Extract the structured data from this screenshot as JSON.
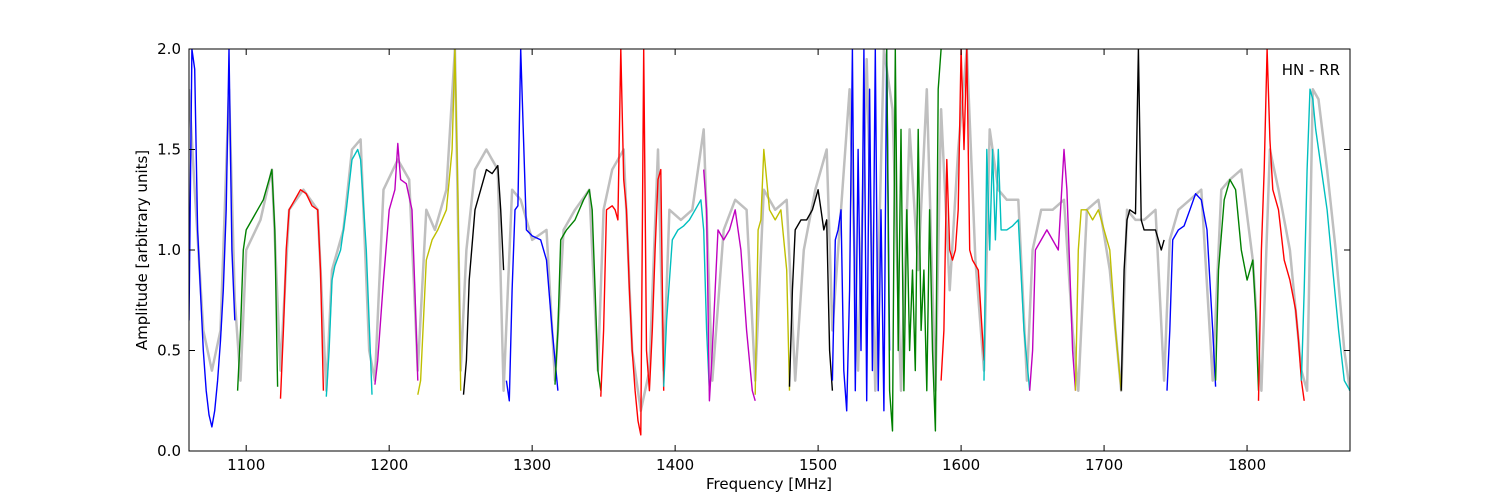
{
  "chart_data": {
    "type": "line",
    "title": "",
    "annotation": "HN - RR",
    "xlabel": "Frequency [MHz]",
    "ylabel": "Amplitude [arbitrary units]",
    "xlim": [
      1060,
      1872
    ],
    "ylim": [
      0,
      2.0
    ],
    "x_ticks": [
      1100,
      1200,
      1300,
      1400,
      1500,
      1600,
      1700,
      1800
    ],
    "y_ticks": [
      0.0,
      0.5,
      1.0,
      1.5,
      2.0
    ],
    "y_tick_labels": [
      "0.0",
      "0.5",
      "1.0",
      "1.5",
      "2.0"
    ],
    "grid": false,
    "colors": {
      "background_envelope": "#bfbfbf",
      "cycle": [
        "#0000ff",
        "#008000",
        "#ff0000",
        "#00bfbf",
        "#bf00bf",
        "#bfbf00",
        "#000000"
      ]
    },
    "background": {
      "name": "envelope",
      "x": [
        1060,
        1064,
        1070,
        1076,
        1082,
        1088,
        1092,
        1096,
        1100,
        1110,
        1118,
        1124,
        1130,
        1140,
        1150,
        1156,
        1160,
        1168,
        1174,
        1180,
        1186,
        1190,
        1196,
        1206,
        1214,
        1220,
        1226,
        1232,
        1240,
        1246,
        1250,
        1254,
        1260,
        1268,
        1276,
        1280,
        1286,
        1292,
        1300,
        1310,
        1316,
        1322,
        1330,
        1340,
        1346,
        1350,
        1356,
        1364,
        1370,
        1376,
        1382,
        1388,
        1392,
        1396,
        1404,
        1412,
        1420,
        1426,
        1434,
        1442,
        1450,
        1456,
        1462,
        1470,
        1478,
        1484,
        1490,
        1498,
        1506,
        1510,
        1516,
        1522,
        1528,
        1534,
        1540,
        1546,
        1552,
        1558,
        1564,
        1570,
        1576,
        1582,
        1586,
        1592,
        1598,
        1604,
        1610,
        1616,
        1620,
        1626,
        1632,
        1640,
        1646,
        1650,
        1656,
        1664,
        1672,
        1678,
        1682,
        1688,
        1696,
        1704,
        1712,
        1716,
        1722,
        1728,
        1736,
        1742,
        1746,
        1752,
        1760,
        1768,
        1776,
        1782,
        1788,
        1796,
        1804,
        1810,
        1816,
        1822,
        1830,
        1838,
        1842,
        1846,
        1850,
        1856,
        1862,
        1868,
        1872
      ],
      "y": [
        1.8,
        1.3,
        0.6,
        0.4,
        0.6,
        1.8,
        0.75,
        0.35,
        1.0,
        1.15,
        1.4,
        0.4,
        1.2,
        1.3,
        1.2,
        0.3,
        0.9,
        1.1,
        1.5,
        1.55,
        0.5,
        0.35,
        1.3,
        1.45,
        1.35,
        0.4,
        1.2,
        1.1,
        1.3,
        2.0,
        0.4,
        1.0,
        1.4,
        1.5,
        1.4,
        0.3,
        1.3,
        1.25,
        1.05,
        1.1,
        0.35,
        1.1,
        1.2,
        1.3,
        0.4,
        1.2,
        1.4,
        1.5,
        0.5,
        0.2,
        0.4,
        1.5,
        0.4,
        1.2,
        1.15,
        1.2,
        1.6,
        0.35,
        1.1,
        1.25,
        1.2,
        0.35,
        1.3,
        1.2,
        1.25,
        0.35,
        1.0,
        1.3,
        1.5,
        0.6,
        1.2,
        1.8,
        0.4,
        1.95,
        0.3,
        2.0,
        1.7,
        0.3,
        1.6,
        0.9,
        1.8,
        0.3,
        1.7,
        0.8,
        1.5,
        2.0,
        0.95,
        0.4,
        1.6,
        1.3,
        1.25,
        1.25,
        0.35,
        1.0,
        1.2,
        1.2,
        1.25,
        0.6,
        0.3,
        1.2,
        1.25,
        0.9,
        0.3,
        1.2,
        1.15,
        1.15,
        1.2,
        0.35,
        1.05,
        1.2,
        1.25,
        1.3,
        0.35,
        1.3,
        1.35,
        1.4,
        0.95,
        0.3,
        1.5,
        1.3,
        1.0,
        0.4,
        0.3,
        1.8,
        1.75,
        1.4,
        1.0,
        0.5,
        0.3
      ]
    },
    "series": [
      {
        "color": "#0000ff",
        "x": [
          1060,
          1062,
          1064,
          1066,
          1068,
          1070,
          1072,
          1074,
          1076,
          1078,
          1080,
          1082,
          1084,
          1086,
          1088,
          1090,
          1092
        ],
        "y": [
          0.65,
          2.0,
          1.9,
          1.1,
          0.8,
          0.5,
          0.3,
          0.18,
          0.12,
          0.2,
          0.35,
          0.55,
          0.8,
          1.2,
          2.0,
          1.0,
          0.65
        ]
      },
      {
        "color": "#008000",
        "x": [
          1094,
          1096,
          1098,
          1100,
          1104,
          1108,
          1112,
          1116,
          1118,
          1120,
          1122
        ],
        "y": [
          0.3,
          0.6,
          1.0,
          1.1,
          1.15,
          1.2,
          1.25,
          1.35,
          1.4,
          1.1,
          0.32
        ]
      },
      {
        "color": "#ff0000",
        "x": [
          1124,
          1126,
          1128,
          1130,
          1134,
          1138,
          1142,
          1146,
          1150,
          1152,
          1154
        ],
        "y": [
          0.26,
          0.6,
          1.0,
          1.2,
          1.25,
          1.3,
          1.28,
          1.22,
          1.2,
          0.9,
          0.3
        ]
      },
      {
        "color": "#00bfbf",
        "x": [
          1156,
          1158,
          1160,
          1162,
          1166,
          1170,
          1174,
          1178,
          1180,
          1184,
          1188
        ],
        "y": [
          0.27,
          0.5,
          0.85,
          0.92,
          1.0,
          1.2,
          1.45,
          1.5,
          1.45,
          1.0,
          0.28
        ]
      },
      {
        "color": "#bf00bf",
        "x": [
          1190,
          1192,
          1196,
          1200,
          1204,
          1206,
          1208,
          1212,
          1216,
          1218,
          1220
        ],
        "y": [
          0.33,
          0.45,
          0.85,
          1.2,
          1.3,
          1.53,
          1.35,
          1.33,
          1.2,
          0.8,
          0.35
        ]
      },
      {
        "color": "#bfbf00",
        "x": [
          1220,
          1222,
          1226,
          1230,
          1234,
          1240,
          1244,
          1246,
          1248,
          1250
        ],
        "y": [
          0.28,
          0.35,
          0.95,
          1.05,
          1.1,
          1.2,
          1.5,
          2.0,
          1.3,
          0.3
        ]
      },
      {
        "color": "#000000",
        "x": [
          1252,
          1254,
          1256,
          1260,
          1264,
          1268,
          1272,
          1276,
          1278,
          1280
        ],
        "y": [
          0.28,
          0.45,
          0.85,
          1.2,
          1.3,
          1.4,
          1.38,
          1.42,
          1.2,
          0.9
        ]
      },
      {
        "color": "#0000ff",
        "x": [
          1282,
          1284,
          1286,
          1288,
          1290,
          1292,
          1296,
          1300,
          1306,
          1310,
          1314,
          1318
        ],
        "y": [
          0.35,
          0.25,
          0.8,
          1.2,
          1.22,
          2.0,
          1.1,
          1.07,
          1.05,
          0.95,
          0.6,
          0.3
        ]
      },
      {
        "color": "#008000",
        "x": [
          1316,
          1318,
          1320,
          1324,
          1330,
          1336,
          1340,
          1342,
          1344,
          1346,
          1348
        ],
        "y": [
          0.33,
          0.6,
          1.05,
          1.1,
          1.15,
          1.25,
          1.3,
          1.2,
          0.8,
          0.4,
          0.3
        ]
      },
      {
        "color": "#ff0000",
        "x": [
          1348,
          1350,
          1352,
          1356,
          1358,
          1360,
          1362,
          1364,
          1366,
          1368,
          1370,
          1372,
          1374,
          1376,
          1378,
          1380,
          1382,
          1384,
          1386,
          1388,
          1390,
          1392
        ],
        "y": [
          0.27,
          0.6,
          1.2,
          1.22,
          1.2,
          1.15,
          2.0,
          1.35,
          1.2,
          0.8,
          0.5,
          0.3,
          0.15,
          0.08,
          2.0,
          0.5,
          0.3,
          0.6,
          1.0,
          1.35,
          1.4,
          0.3
        ]
      },
      {
        "color": "#00bfbf",
        "x": [
          1392,
          1394,
          1398,
          1402,
          1406,
          1410,
          1414,
          1418,
          1420,
          1422,
          1424
        ],
        "y": [
          0.32,
          0.65,
          1.05,
          1.1,
          1.12,
          1.15,
          1.2,
          1.25,
          1.1,
          0.6,
          0.3
        ]
      },
      {
        "color": "#bf00bf",
        "x": [
          1420,
          1422,
          1424,
          1426,
          1430,
          1434,
          1438,
          1442,
          1446,
          1450,
          1454,
          1456
        ],
        "y": [
          1.4,
          1.2,
          0.25,
          0.5,
          1.1,
          1.05,
          1.1,
          1.2,
          1.0,
          0.6,
          0.3,
          0.25
        ]
      },
      {
        "color": "#bfbf00",
        "x": [
          1456,
          1458,
          1460,
          1462,
          1466,
          1470,
          1474,
          1478,
          1480
        ],
        "y": [
          0.28,
          1.1,
          1.15,
          1.5,
          1.2,
          1.15,
          1.2,
          0.9,
          0.3
        ]
      },
      {
        "color": "#000000",
        "x": [
          1480,
          1482,
          1484,
          1488,
          1492,
          1496,
          1500,
          1502,
          1504,
          1506,
          1508,
          1510
        ],
        "y": [
          0.32,
          0.8,
          1.1,
          1.15,
          1.15,
          1.2,
          1.3,
          1.2,
          1.1,
          1.15,
          0.5,
          0.3
        ]
      },
      {
        "color": "#0000ff",
        "x": [
          1510,
          1512,
          1514,
          1516,
          1518,
          1520,
          1522,
          1524,
          1526,
          1528,
          1530,
          1532,
          1534,
          1536,
          1538,
          1540,
          1542,
          1544,
          1546,
          1548,
          1550
        ],
        "y": [
          0.35,
          1.05,
          1.1,
          1.2,
          0.4,
          0.2,
          0.8,
          2.0,
          0.3,
          1.5,
          0.5,
          2.0,
          0.25,
          1.8,
          0.4,
          2.0,
          0.3,
          1.2,
          0.2,
          2.0,
          0.5
        ]
      },
      {
        "color": "#008000",
        "x": [
          1548,
          1550,
          1552,
          1554,
          1556,
          1558,
          1560,
          1562,
          1564,
          1566,
          1568,
          1570,
          1572,
          1574,
          1576,
          1578,
          1580,
          1582,
          1584,
          1586
        ],
        "y": [
          2.0,
          0.3,
          0.1,
          2.0,
          0.5,
          1.6,
          0.3,
          1.2,
          0.5,
          0.9,
          0.4,
          1.6,
          0.6,
          0.9,
          0.3,
          1.2,
          0.5,
          0.1,
          1.8,
          2.0
        ]
      },
      {
        "color": "#ff0000",
        "x": [
          1586,
          1588,
          1590,
          1592,
          1594,
          1596,
          1598,
          1600,
          1602,
          1604,
          1606,
          1608,
          1612,
          1616
        ],
        "y": [
          0.35,
          0.6,
          1.45,
          1.0,
          0.95,
          1.0,
          1.2,
          2.0,
          1.5,
          2.0,
          1.0,
          0.95,
          0.9,
          0.45
        ]
      },
      {
        "color": "#00bfbf",
        "x": [
          1616,
          1618,
          1620,
          1622,
          1624,
          1626,
          1628,
          1632,
          1636,
          1640,
          1644,
          1648
        ],
        "y": [
          0.35,
          1.5,
          1.0,
          1.5,
          1.05,
          1.5,
          1.1,
          1.1,
          1.12,
          1.15,
          0.6,
          0.3
        ]
      },
      {
        "color": "#bf00bf",
        "x": [
          1648,
          1650,
          1652,
          1656,
          1660,
          1664,
          1668,
          1672,
          1674,
          1676,
          1678,
          1680
        ],
        "y": [
          0.3,
          0.5,
          1.0,
          1.05,
          1.1,
          1.05,
          1.0,
          1.5,
          1.3,
          0.9,
          0.5,
          0.3
        ]
      },
      {
        "color": "#bfbf00",
        "x": [
          1680,
          1682,
          1684,
          1688,
          1692,
          1696,
          1700,
          1704,
          1708,
          1712
        ],
        "y": [
          0.3,
          1.0,
          1.2,
          1.2,
          1.15,
          1.2,
          1.1,
          1.0,
          0.6,
          0.3
        ]
      },
      {
        "color": "#000000",
        "x": [
          1712,
          1714,
          1716,
          1718,
          1722,
          1724,
          1726,
          1728,
          1732,
          1736,
          1740,
          1742
        ],
        "y": [
          0.3,
          0.9,
          1.15,
          1.2,
          1.18,
          2.0,
          1.15,
          1.1,
          1.1,
          1.1,
          1.0,
          1.05
        ]
      },
      {
        "color": "#0000ff",
        "x": [
          1744,
          1746,
          1748,
          1752,
          1756,
          1760,
          1764,
          1768,
          1772,
          1776,
          1778
        ],
        "y": [
          0.3,
          0.6,
          1.05,
          1.1,
          1.12,
          1.2,
          1.28,
          1.25,
          1.1,
          0.6,
          0.32
        ]
      },
      {
        "color": "#008000",
        "x": [
          1778,
          1780,
          1784,
          1788,
          1792,
          1796,
          1800,
          1804,
          1806,
          1808
        ],
        "y": [
          0.35,
          0.9,
          1.25,
          1.35,
          1.3,
          1.0,
          0.85,
          0.95,
          0.7,
          0.3
        ]
      },
      {
        "color": "#ff0000",
        "x": [
          1808,
          1810,
          1812,
          1814,
          1816,
          1818,
          1822,
          1826,
          1830,
          1834,
          1836,
          1838,
          1840
        ],
        "y": [
          0.25,
          1.0,
          1.4,
          2.0,
          1.55,
          1.3,
          1.2,
          0.95,
          0.85,
          0.7,
          0.55,
          0.35,
          0.25
        ]
      },
      {
        "color": "#00bfbf",
        "x": [
          1838,
          1840,
          1842,
          1844,
          1846,
          1848,
          1852,
          1856,
          1860,
          1864,
          1868,
          1872
        ],
        "y": [
          0.35,
          0.8,
          1.4,
          1.8,
          1.75,
          1.6,
          1.4,
          1.2,
          0.9,
          0.6,
          0.35,
          0.3
        ]
      }
    ]
  }
}
